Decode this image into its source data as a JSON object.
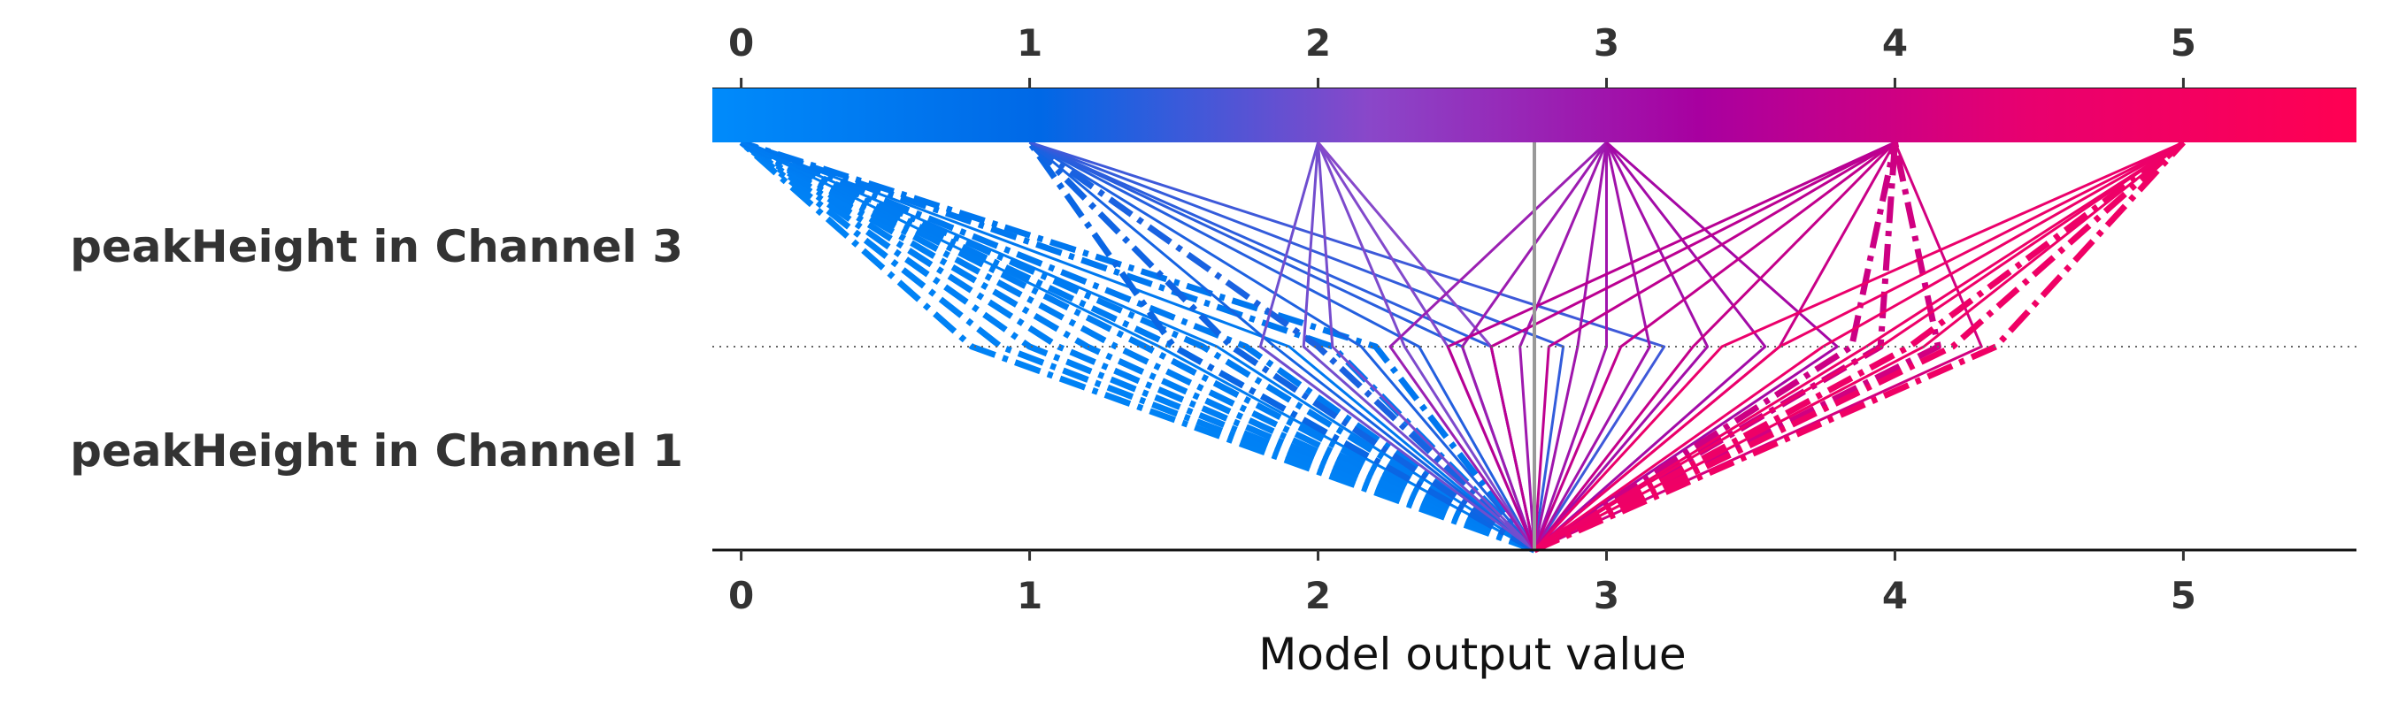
{
  "chart_data": {
    "type": "decision",
    "xlabel": "Model output value",
    "xlim": [
      -0.1,
      5.6
    ],
    "base_value": 2.75,
    "ticks": [
      0,
      1,
      2,
      3,
      4,
      5
    ],
    "tick_labels": [
      "0",
      "1",
      "2",
      "3",
      "4",
      "5"
    ],
    "features": [
      "peakHeight in Channel 3",
      "peakHeight in Channel 1"
    ],
    "colormap": [
      "#008bfb",
      "#0068e6",
      "#8a47c9",
      "#a800a0",
      "#e8006f",
      "#ff0052"
    ],
    "grid": "dotted line between features",
    "paths": [
      {
        "mid": 0.8,
        "end": 0,
        "style": "dashdot"
      },
      {
        "mid": 0.9,
        "end": 0,
        "style": "dashdot"
      },
      {
        "mid": 1.0,
        "end": 0,
        "style": "dashdot"
      },
      {
        "mid": 1.1,
        "end": 0,
        "style": "dashdot"
      },
      {
        "mid": 1.2,
        "end": 0,
        "style": "dashdot"
      },
      {
        "mid": 1.3,
        "end": 0,
        "style": "dashdot"
      },
      {
        "mid": 1.4,
        "end": 0,
        "style": "dashdot"
      },
      {
        "mid": 1.5,
        "end": 0,
        "style": "dashdot"
      },
      {
        "mid": 1.6,
        "end": 0,
        "style": "dashdot"
      },
      {
        "mid": 1.75,
        "end": 0,
        "style": "dashdot"
      },
      {
        "mid": 1.9,
        "end": 0,
        "style": "solid"
      },
      {
        "mid": 2.05,
        "end": 0,
        "style": "dashdot"
      },
      {
        "mid": 2.2,
        "end": 0,
        "style": "dashdot"
      },
      {
        "mid": 1.45,
        "end": 0,
        "style": "solid"
      },
      {
        "mid": 1.65,
        "end": 0,
        "style": "solid"
      },
      {
        "mid": 1.5,
        "end": 1,
        "style": "dashdot"
      },
      {
        "mid": 1.7,
        "end": 1,
        "style": "dashdot"
      },
      {
        "mid": 1.85,
        "end": 1,
        "style": "solid"
      },
      {
        "mid": 2.0,
        "end": 1,
        "style": "dashdot"
      },
      {
        "mid": 2.15,
        "end": 1,
        "style": "solid"
      },
      {
        "mid": 2.35,
        "end": 1,
        "style": "solid"
      },
      {
        "mid": 2.5,
        "end": 1,
        "style": "solid"
      },
      {
        "mid": 2.6,
        "end": 1,
        "style": "solid"
      },
      {
        "mid": 2.85,
        "end": 1,
        "style": "solid"
      },
      {
        "mid": 3.2,
        "end": 1,
        "style": "solid"
      },
      {
        "mid": 1.8,
        "end": 2,
        "style": "solid"
      },
      {
        "mid": 1.95,
        "end": 2,
        "style": "solid"
      },
      {
        "mid": 2.05,
        "end": 2,
        "style": "solid"
      },
      {
        "mid": 2.3,
        "end": 2,
        "style": "solid"
      },
      {
        "mid": 2.45,
        "end": 2,
        "style": "solid"
      },
      {
        "mid": 2.6,
        "end": 2,
        "style": "solid"
      },
      {
        "mid": 2.25,
        "end": 3,
        "style": "solid"
      },
      {
        "mid": 2.5,
        "end": 3,
        "style": "solid"
      },
      {
        "mid": 2.7,
        "end": 3,
        "style": "solid"
      },
      {
        "mid": 2.9,
        "end": 3,
        "style": "solid"
      },
      {
        "mid": 3.0,
        "end": 3,
        "style": "solid"
      },
      {
        "mid": 3.15,
        "end": 3,
        "style": "solid"
      },
      {
        "mid": 3.35,
        "end": 3,
        "style": "solid"
      },
      {
        "mid": 3.55,
        "end": 3,
        "style": "solid"
      },
      {
        "mid": 3.8,
        "end": 3,
        "style": "solid"
      },
      {
        "mid": 2.45,
        "end": 4,
        "style": "solid"
      },
      {
        "mid": 2.6,
        "end": 4,
        "style": "solid"
      },
      {
        "mid": 2.8,
        "end": 4,
        "style": "solid"
      },
      {
        "mid": 3.05,
        "end": 4,
        "style": "solid"
      },
      {
        "mid": 3.3,
        "end": 4,
        "style": "solid"
      },
      {
        "mid": 3.6,
        "end": 4,
        "style": "solid"
      },
      {
        "mid": 3.85,
        "end": 4,
        "style": "dashdot"
      },
      {
        "mid": 3.95,
        "end": 4,
        "style": "dashdot"
      },
      {
        "mid": 4.15,
        "end": 4,
        "style": "dashdot"
      },
      {
        "mid": 4.3,
        "end": 4,
        "style": "solid"
      },
      {
        "mid": 3.4,
        "end": 5,
        "style": "solid"
      },
      {
        "mid": 3.6,
        "end": 5,
        "style": "solid"
      },
      {
        "mid": 3.75,
        "end": 5,
        "style": "solid"
      },
      {
        "mid": 3.9,
        "end": 5,
        "style": "solid"
      },
      {
        "mid": 4.05,
        "end": 5,
        "style": "dashdot"
      },
      {
        "mid": 4.2,
        "end": 5,
        "style": "dashdot"
      },
      {
        "mid": 4.35,
        "end": 5,
        "style": "dashdot"
      },
      {
        "mid": 3.95,
        "end": 5,
        "style": "solid"
      },
      {
        "mid": 4.1,
        "end": 5,
        "style": "solid"
      }
    ]
  }
}
